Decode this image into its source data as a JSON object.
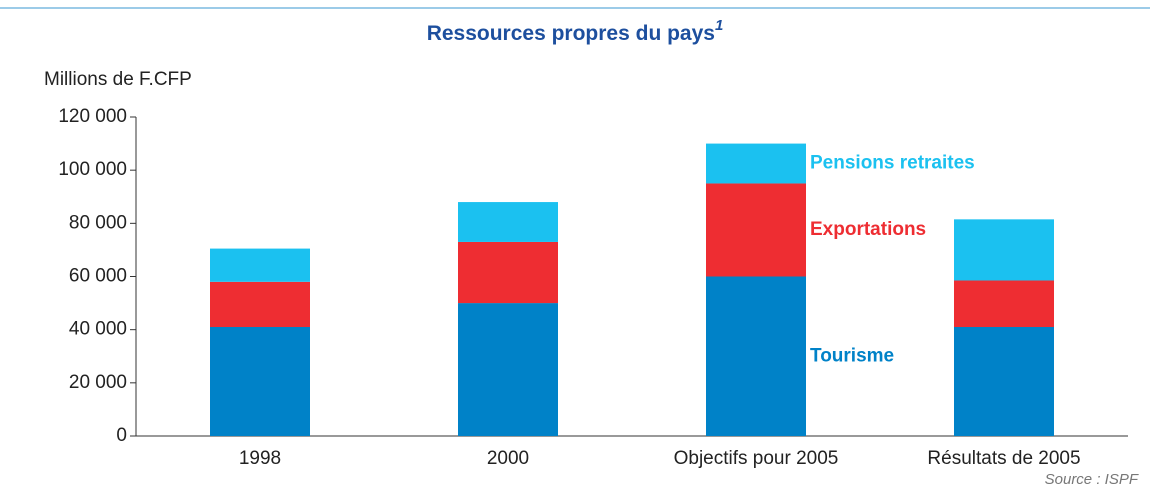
{
  "chart_data": {
    "type": "stacked-bar",
    "title": "Ressources propres du pays",
    "title_note": "1",
    "y_label": "Millions de F.CFP",
    "source": "Source : ISPF",
    "categories": [
      "1998",
      "2000",
      "Objectifs pour 2005",
      "Résultats de 2005"
    ],
    "series": [
      {
        "name": "Tourisme",
        "color": "#0082c8",
        "values": [
          41000,
          50000,
          60000,
          41000
        ]
      },
      {
        "name": "Exportations",
        "color": "#ee2d32",
        "values": [
          17000,
          23000,
          35000,
          17500
        ]
      },
      {
        "name": "Pensions retraites",
        "color": "#1bc1f0",
        "values": [
          12500,
          15000,
          15000,
          23000
        ]
      }
    ],
    "ylim": [
      0,
      120000
    ],
    "yticks": [
      0,
      {
        "value": 20000,
        "label": "20 000"
      },
      {
        "value": 40000,
        "label": "40 000"
      },
      {
        "value": 60000,
        "label": "60 000"
      },
      {
        "value": 80000,
        "label": "80 000"
      },
      {
        "value": 100000,
        "label": "100 000"
      },
      {
        "value": 120000,
        "label": "120 000"
      }
    ]
  }
}
